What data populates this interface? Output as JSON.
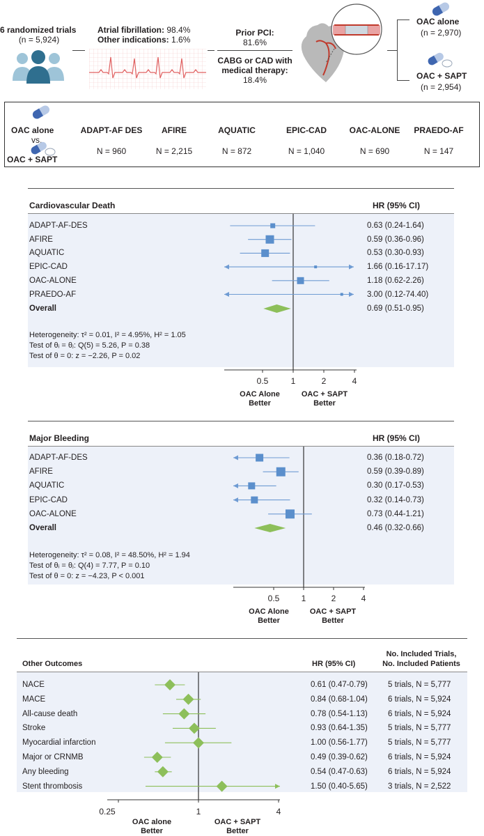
{
  "top": {
    "trials_title": "6 randomized trials",
    "trials_n": "(n = 5,924)",
    "af_label": "Atrial fibrillation:",
    "af_value": "98.4%",
    "other_label": "Other indications:",
    "other_value": "1.6%",
    "pci_label": "Prior PCI:",
    "pci_value": "81.6%",
    "cabg_label_1": "CABG or CAD with",
    "cabg_label_2": "medical therapy:",
    "cabg_value": "18.4%",
    "arm1_label": "OAC alone",
    "arm1_n": "(n = 2,970)",
    "arm2_label": "OAC + SAPT",
    "arm2_n": "(n = 2,954)"
  },
  "trials_box": {
    "left_top": "OAC alone",
    "left_vs": "vs.",
    "left_bottom": "OAC + SAPT",
    "trials": [
      {
        "name": "ADAPT-AF DES",
        "n": "N = 960"
      },
      {
        "name": "AFIRE",
        "n": "N = 2,215"
      },
      {
        "name": "AQUATIC",
        "n": "N = 872"
      },
      {
        "name": "EPIC-CAD",
        "n": "N = 1,040"
      },
      {
        "name": "OAC-ALONE",
        "n": "N = 690"
      },
      {
        "name": "PRAEDO-AF",
        "n": "N = 147"
      }
    ]
  },
  "cv": {
    "title": "Cardiovascular Death",
    "hr_header": "HR (95% CI)",
    "rows": [
      {
        "name": "ADAPT-AF-DES",
        "hr": "0.63 (0.24-1.64)"
      },
      {
        "name": "AFIRE",
        "hr": "0.59 (0.36-0.96)"
      },
      {
        "name": "AQUATIC",
        "hr": "0.53 (0.30-0.93)"
      },
      {
        "name": "EPIC-CAD",
        "hr": "1.66 (0.16-17.17)"
      },
      {
        "name": "OAC-ALONE",
        "hr": "1.18 (0.62-2.26)"
      },
      {
        "name": "PRAEDO-AF",
        "hr": "3.00 (0.12-74.40)"
      }
    ],
    "overall_label": "Overall",
    "overall_hr": "0.69 (0.51-0.95)",
    "het1": "Heterogeneity: τ² = 0.01, I² = 4.95%, H² = 1.05",
    "het2": "Test of θᵢ = θⱼ: Q(5) = 5.26, P = 0.38",
    "het3": "Test of θ = 0: z = −2.26, P = 0.02",
    "ticks": [
      "0.5",
      "1",
      "2",
      "4"
    ],
    "left_caption_1": "OAC Alone",
    "left_caption_2": "Better",
    "right_caption_1": "OAC + SAPT",
    "right_caption_2": "Better"
  },
  "mb": {
    "title": "Major Bleeding",
    "hr_header": "HR (95% CI)",
    "rows": [
      {
        "name": "ADAPT-AF-DES",
        "hr": "0.36 (0.18-0.72)"
      },
      {
        "name": "AFIRE",
        "hr": "0.59 (0.39-0.89)"
      },
      {
        "name": "AQUATIC",
        "hr": "0.30 (0.17-0.53)"
      },
      {
        "name": "EPIC-CAD",
        "hr": "0.32 (0.14-0.73)"
      },
      {
        "name": "OAC-ALONE",
        "hr": "0.73 (0.44-1.21)"
      }
    ],
    "overall_label": "Overall",
    "overall_hr": "0.46 (0.32-0.66)",
    "het1": "Heterogeneity: τ² = 0.08, I² = 48.50%, H² = 1.94",
    "het2": "Test of θᵢ = θⱼ: Q(4) = 7.77, P = 0.10",
    "het3": "Test of θ = 0: z = −4.23, P < 0.001",
    "ticks": [
      "0.5",
      "1",
      "2",
      "4"
    ],
    "left_caption_1": "OAC Alone",
    "left_caption_2": "Better",
    "right_caption_1": "OAC + SAPT",
    "right_caption_2": "Better"
  },
  "oo": {
    "title": "Other Outcomes",
    "hr_header": "HR (95% CI)",
    "trials_header_1": "No. Included Trials,",
    "trials_header_2": "No. Included Patients",
    "rows": [
      {
        "name": "NACE",
        "hr": "0.61 (0.47-0.79)",
        "trials": "5 trials, N = 5,777"
      },
      {
        "name": "MACE",
        "hr": "0.84 (0.68-1.04)",
        "trials": "6 trials, N = 5,924"
      },
      {
        "name": "All-cause death",
        "hr": "0.78 (0.54-1.13)",
        "trials": "6 trials, N = 5,924"
      },
      {
        "name": "Stroke",
        "hr": "0.93 (0.64-1.35)",
        "trials": "5 trials, N = 5,777"
      },
      {
        "name": "Myocardial infarction",
        "hr": "1.00 (0.56-1.77)",
        "trials": "5 trials, N = 5,777"
      },
      {
        "name": "Major or CRNMB",
        "hr": "0.49 (0.39-0.62)",
        "trials": "6 trials, N = 5,924"
      },
      {
        "name": "Any bleeding",
        "hr": "0.54 (0.47-0.63)",
        "trials": "6 trials, N = 5,924"
      },
      {
        "name": "Stent thrombosis",
        "hr": "1.50 (0.40-5.65)",
        "trials": "3 trials, N = 2,522"
      }
    ],
    "ticks": [
      "0.25",
      "1",
      "4"
    ],
    "left_caption_1": "OAC alone",
    "left_caption_2": "Better",
    "right_caption_1": "OAC + SAPT",
    "right_caption_2": "Better"
  },
  "colors": {
    "square": "#5b8fcc",
    "diamond": "#8dbf5a",
    "panel_bg": "#edf1f9",
    "ecg_line": "#e06060",
    "people": "#2f6f8f"
  },
  "chart_data": [
    {
      "type": "forest",
      "title": "Cardiovascular Death",
      "xscale": "log",
      "xticks": [
        0.5,
        1,
        2,
        4
      ],
      "null_line": 1,
      "points": [
        {
          "label": "ADAPT-AF-DES",
          "est": 0.63,
          "lo": 0.24,
          "hi": 1.64
        },
        {
          "label": "AFIRE",
          "est": 0.59,
          "lo": 0.36,
          "hi": 0.96
        },
        {
          "label": "AQUATIC",
          "est": 0.53,
          "lo": 0.3,
          "hi": 0.93
        },
        {
          "label": "EPIC-CAD",
          "est": 1.66,
          "lo": 0.16,
          "hi": 17.17
        },
        {
          "label": "OAC-ALONE",
          "est": 1.18,
          "lo": 0.62,
          "hi": 2.26
        },
        {
          "label": "PRAEDO-AF",
          "est": 3.0,
          "lo": 0.12,
          "hi": 74.4
        }
      ],
      "overall": {
        "label": "Overall",
        "est": 0.69,
        "lo": 0.51,
        "hi": 0.95
      }
    },
    {
      "type": "forest",
      "title": "Major Bleeding",
      "xscale": "log",
      "xticks": [
        0.5,
        1,
        2,
        4
      ],
      "null_line": 1,
      "points": [
        {
          "label": "ADAPT-AF-DES",
          "est": 0.36,
          "lo": 0.18,
          "hi": 0.72
        },
        {
          "label": "AFIRE",
          "est": 0.59,
          "lo": 0.39,
          "hi": 0.89
        },
        {
          "label": "AQUATIC",
          "est": 0.3,
          "lo": 0.17,
          "hi": 0.53
        },
        {
          "label": "EPIC-CAD",
          "est": 0.32,
          "lo": 0.14,
          "hi": 0.73
        },
        {
          "label": "OAC-ALONE",
          "est": 0.73,
          "lo": 0.44,
          "hi": 1.21
        }
      ],
      "overall": {
        "label": "Overall",
        "est": 0.46,
        "lo": 0.32,
        "hi": 0.66
      }
    },
    {
      "type": "forest",
      "title": "Other Outcomes",
      "xscale": "log",
      "xticks": [
        0.25,
        1,
        4
      ],
      "null_line": 1,
      "points": [
        {
          "label": "NACE",
          "est": 0.61,
          "lo": 0.47,
          "hi": 0.79
        },
        {
          "label": "MACE",
          "est": 0.84,
          "lo": 0.68,
          "hi": 1.04
        },
        {
          "label": "All-cause death",
          "est": 0.78,
          "lo": 0.54,
          "hi": 1.13
        },
        {
          "label": "Stroke",
          "est": 0.93,
          "lo": 0.64,
          "hi": 1.35
        },
        {
          "label": "Myocardial infarction",
          "est": 1.0,
          "lo": 0.56,
          "hi": 1.77
        },
        {
          "label": "Major or CRNMB",
          "est": 0.49,
          "lo": 0.39,
          "hi": 0.62
        },
        {
          "label": "Any bleeding",
          "est": 0.54,
          "lo": 0.47,
          "hi": 0.63
        },
        {
          "label": "Stent thrombosis",
          "est": 1.5,
          "lo": 0.4,
          "hi": 5.65
        }
      ]
    }
  ]
}
